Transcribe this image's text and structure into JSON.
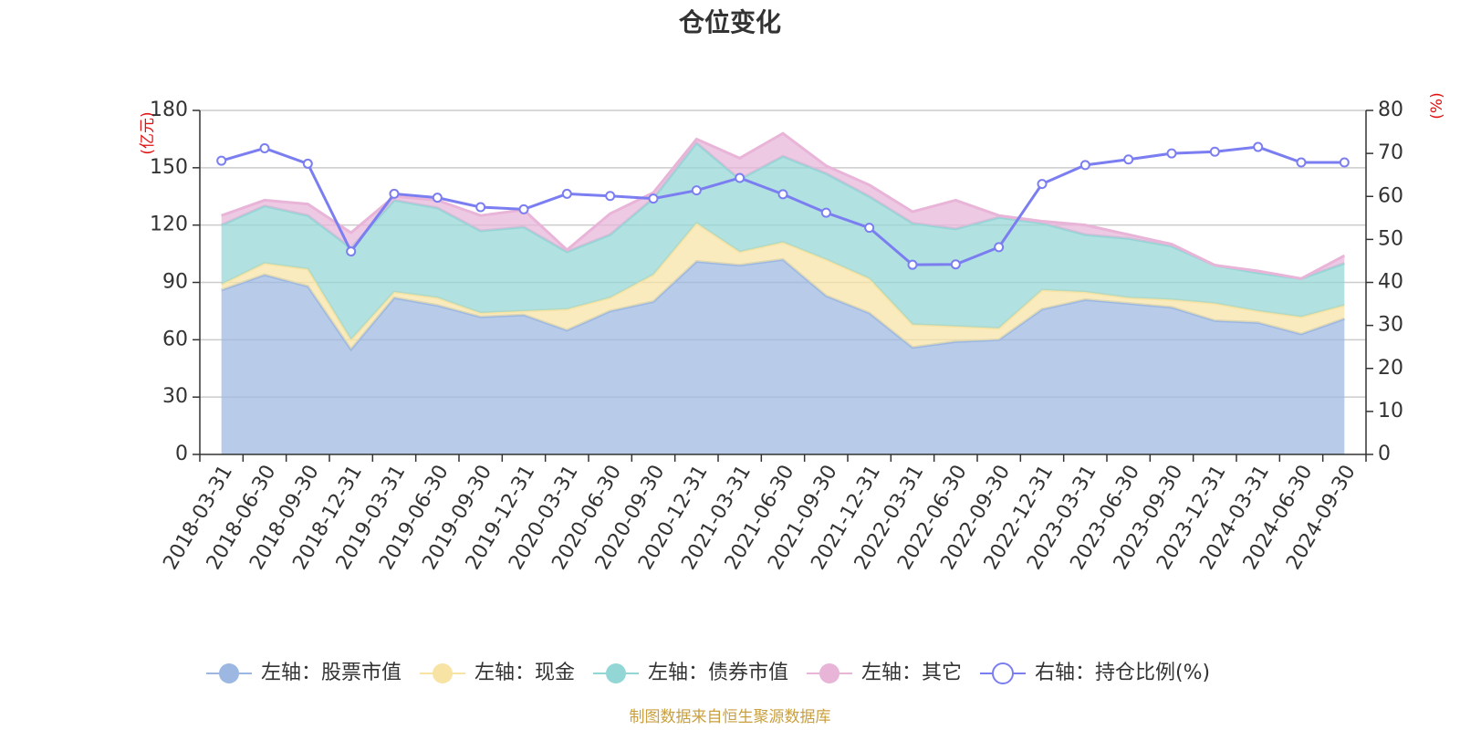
{
  "chart_data": {
    "type": "area",
    "title": "仓位变化",
    "left_axis_unit": "(亿元)",
    "right_axis_unit": "(%)",
    "left_ylim": [
      0,
      180
    ],
    "left_ticks": [
      0,
      30,
      60,
      90,
      120,
      150,
      180
    ],
    "right_ylim": [
      0,
      80
    ],
    "right_ticks": [
      0,
      10,
      20,
      30,
      40,
      50,
      60,
      70,
      80
    ],
    "categories": [
      "2018-03-31",
      "2018-06-30",
      "2018-09-30",
      "2018-12-31",
      "2019-03-31",
      "2019-06-30",
      "2019-09-30",
      "2019-12-31",
      "2020-03-31",
      "2020-06-30",
      "2020-09-30",
      "2020-12-31",
      "2021-03-31",
      "2021-06-30",
      "2021-09-30",
      "2021-12-31",
      "2022-03-31",
      "2022-06-30",
      "2022-09-30",
      "2022-12-31",
      "2023-03-31",
      "2023-06-30",
      "2023-09-30",
      "2023-12-31",
      "2024-03-31",
      "2024-06-30",
      "2024-09-30"
    ],
    "series": [
      {
        "name": "左轴：股票市值",
        "axis": "left",
        "type": "stacked-area",
        "color": "#9cb8e2",
        "values": [
          86,
          94,
          88,
          55,
          82,
          78,
          72,
          73,
          65,
          75,
          80,
          101,
          99,
          102,
          83,
          74,
          56,
          59,
          60,
          76,
          81,
          79,
          77,
          70,
          69,
          63,
          71
        ]
      },
      {
        "name": "左轴：现金",
        "axis": "left",
        "type": "stacked-area",
        "color": "#f7e3a4",
        "values": [
          3,
          6,
          9,
          5,
          3,
          4,
          2,
          2,
          11,
          7,
          14,
          20,
          7,
          9,
          19,
          18,
          12,
          8,
          6,
          10,
          4,
          3,
          4,
          9,
          6,
          9,
          7
        ]
      },
      {
        "name": "左轴：债券市值",
        "axis": "left",
        "type": "stacked-area",
        "color": "#93d6d6",
        "values": [
          31,
          30,
          28,
          48,
          48,
          47,
          43,
          44,
          30,
          33,
          40,
          42,
          38,
          45,
          45,
          43,
          53,
          51,
          58,
          35,
          30,
          31,
          28,
          20,
          20,
          20,
          22
        ]
      },
      {
        "name": "左轴：其它",
        "axis": "left",
        "type": "stacked-area",
        "color": "#e8b4d8",
        "values": [
          5,
          3,
          6,
          8,
          2,
          4,
          8,
          9,
          1,
          11,
          3,
          2,
          11,
          12,
          4,
          6,
          6,
          15,
          1,
          1,
          5,
          2,
          1,
          0,
          1,
          0,
          4
        ]
      },
      {
        "name": "右轴：持仓比例(%)",
        "axis": "right",
        "type": "line",
        "color": "#7b7ef0",
        "values": [
          68.3,
          71.2,
          67.6,
          47.2,
          60.6,
          59.7,
          57.5,
          57.0,
          60.6,
          60.1,
          59.5,
          61.4,
          64.3,
          60.5,
          56.2,
          52.7,
          44.1,
          44.2,
          48.2,
          62.9,
          67.3,
          68.6,
          70.0,
          70.4,
          71.5,
          67.9,
          67.9
        ]
      }
    ]
  },
  "legend": [
    {
      "label": "左轴：股票市值",
      "color": "#9cb8e2",
      "hollow": false
    },
    {
      "label": "左轴：现金",
      "color": "#f7e3a4",
      "hollow": false
    },
    {
      "label": "左轴：债券市值",
      "color": "#93d6d6",
      "hollow": false
    },
    {
      "label": "左轴：其它",
      "color": "#e8b4d8",
      "hollow": false
    },
    {
      "label": "右轴：持仓比例(%)",
      "color": "#7b7ef0",
      "hollow": true
    }
  ],
  "source_text": "制图数据来自恒生聚源数据库"
}
